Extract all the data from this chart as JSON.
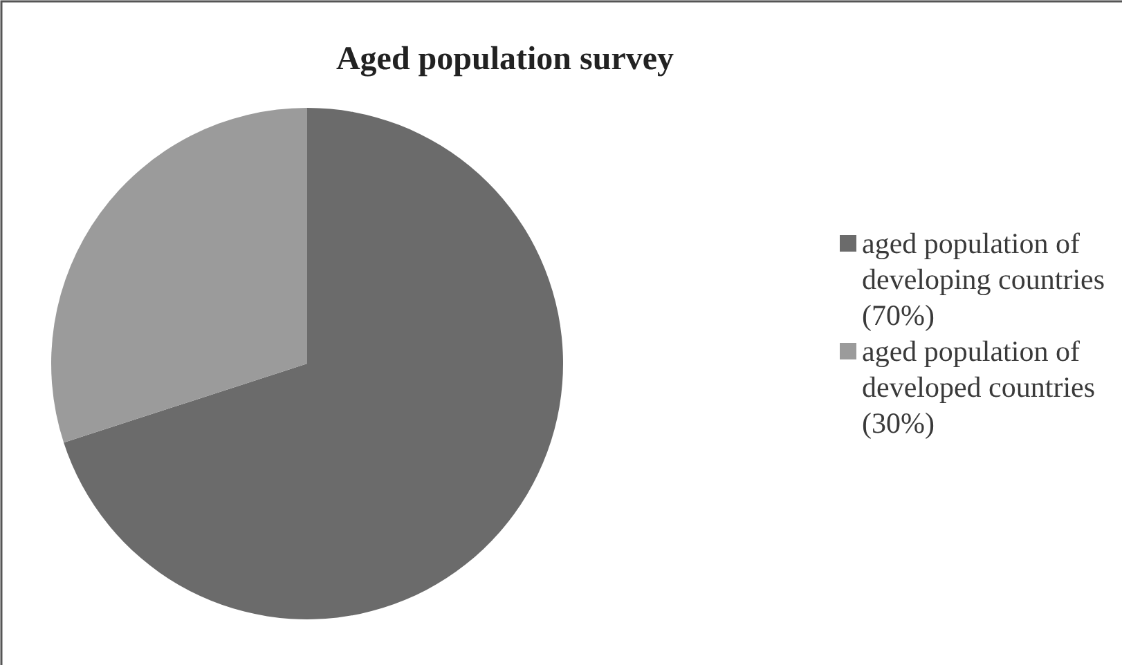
{
  "chart_data": {
    "type": "pie",
    "title": "Aged population survey",
    "categories": [
      "aged population of developing countries (70%)",
      "aged population of developed countries (30%)"
    ],
    "values": [
      70,
      30
    ],
    "colors": [
      "#6b6b6b",
      "#9b9b9b"
    ],
    "legend": "right"
  }
}
